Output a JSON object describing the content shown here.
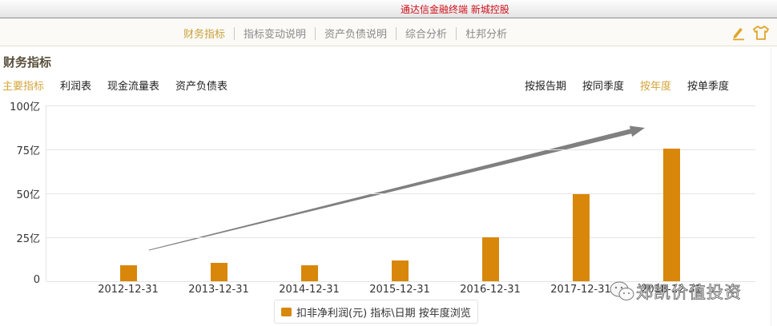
{
  "titlebar": {
    "title": "通达信金融终端 新城控股"
  },
  "navbar": {
    "tabs": [
      {
        "label": "财务指标",
        "active": true
      },
      {
        "label": "指标变动说明",
        "active": false
      },
      {
        "label": "资产负债说明",
        "active": false
      },
      {
        "label": "综合分析",
        "active": false
      },
      {
        "label": "杜邦分析",
        "active": false
      }
    ],
    "icons": [
      "edit-pen-icon",
      "skin-shirt-icon"
    ]
  },
  "section": {
    "title": "财务指标"
  },
  "subtabs": [
    {
      "label": "主要指标",
      "active": true
    },
    {
      "label": "利润表",
      "active": false
    },
    {
      "label": "现金流量表",
      "active": false
    },
    {
      "label": "资产负债表",
      "active": false
    }
  ],
  "period_tabs": [
    {
      "label": "按报告期",
      "active": false
    },
    {
      "label": "按同季度",
      "active": false
    },
    {
      "label": "按年度",
      "active": true
    },
    {
      "label": "按单季度",
      "active": false
    }
  ],
  "colors": {
    "bar": "#d8870a",
    "accent": "#d4a43a",
    "title_red": "#d0101a",
    "arrow": "#808080"
  },
  "watermark": {
    "text": "郑凯价值投资",
    "icon": "wechat-icon"
  },
  "chart_data": {
    "type": "bar",
    "title": "",
    "categories": [
      "2012-12-31",
      "2013-12-31",
      "2014-12-31",
      "2015-12-31",
      "2016-12-31",
      "2017-12-31",
      "2018-12-31"
    ],
    "series": [
      {
        "name": "扣非净利润(元) 指标\\日期 按年度浏览",
        "values": [
          9.1,
          10.5,
          9.2,
          12.0,
          25.0,
          49.5,
          75.5
        ],
        "unit": "亿"
      }
    ],
    "yticks": [
      "0",
      "25亿",
      "50亿",
      "75亿",
      "100亿"
    ],
    "ylim": [
      0,
      100
    ],
    "xlabel": "",
    "ylabel": "",
    "grid": true,
    "legend": {
      "position": "bottom",
      "label": "扣非净利润(元) 指标\\日期 按年度浏览"
    },
    "annotations": [
      {
        "type": "arrow",
        "description": "upward trend arrow",
        "from": [
          186,
          313
        ],
        "to": [
          805,
          160
        ]
      }
    ]
  }
}
